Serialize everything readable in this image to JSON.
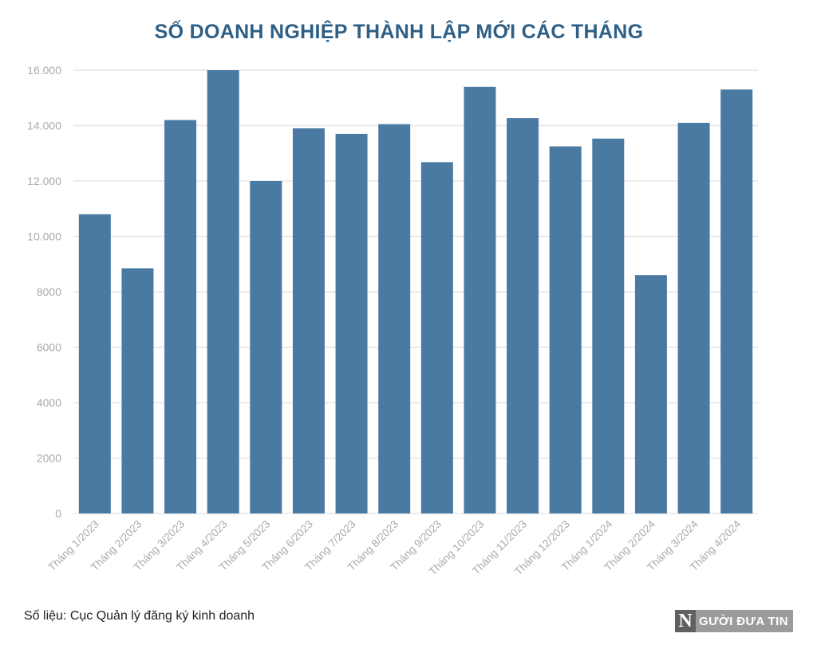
{
  "colors": {
    "title": "#2e5f86",
    "bar": "#4a7aa1",
    "grid": "#e6e6e6",
    "tick": "#aaaaaa"
  },
  "source_text": "Số liệu: Cục Quản lý đăng ký kinh doanh",
  "logo": {
    "letter": "N",
    "text": "GƯỜI ĐƯA TIN"
  },
  "chart_data": {
    "type": "bar",
    "title": "SỐ DOANH NGHIỆP THÀNH LẬP MỚI CÁC THÁNG",
    "xlabel": "",
    "ylabel": "",
    "ylim": [
      0,
      16000
    ],
    "grid": true,
    "yticks": [
      {
        "value": 0,
        "label": "0"
      },
      {
        "value": 2000,
        "label": "2000"
      },
      {
        "value": 4000,
        "label": "4000"
      },
      {
        "value": 6000,
        "label": "6000"
      },
      {
        "value": 8000,
        "label": "8000"
      },
      {
        "value": 10000,
        "label": "10.000"
      },
      {
        "value": 12000,
        "label": "12.000"
      },
      {
        "value": 14000,
        "label": "14.000"
      },
      {
        "value": 16000,
        "label": "16.000"
      }
    ],
    "categories": [
      "Tháng 1/2023",
      "Tháng 2/2023",
      "Tháng 3/2023",
      "Tháng 4/2023",
      "Tháng 5/2023",
      "Tháng 6/2023",
      "Tháng 7/2023",
      "Tháng 8/2023",
      "Tháng 9/2023",
      "Tháng 10/2023",
      "Tháng 11/2023",
      "Tháng 12/2023",
      "Tháng 1/2024",
      "Tháng 2/2024",
      "Tháng 3/2024",
      "Tháng 4/2024"
    ],
    "values": [
      10800,
      8850,
      14200,
      16000,
      12000,
      13900,
      13700,
      14050,
      12680,
      15400,
      14270,
      13250,
      13530,
      8600,
      14100,
      15300
    ]
  }
}
